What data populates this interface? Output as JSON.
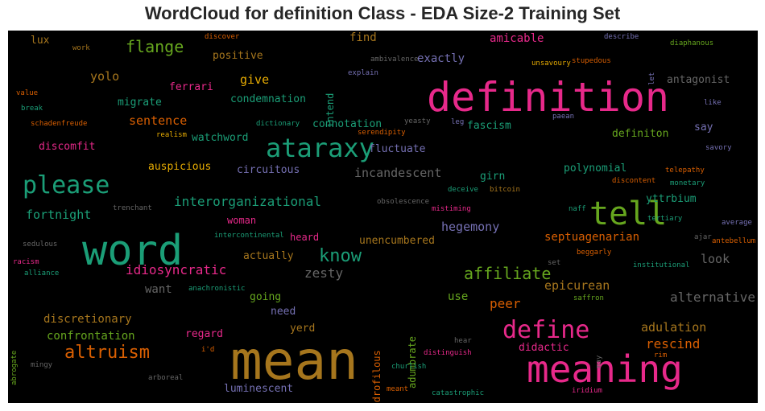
{
  "chart_data": {
    "type": "wordcloud",
    "title": "WordCloud for definition Class - EDA Size-2 Training Set",
    "words": [
      {
        "text": "definition",
        "color": "#e7298a"
      },
      {
        "text": "mean",
        "color": "#a6761d"
      },
      {
        "text": "word",
        "color": "#1b9e77"
      },
      {
        "text": "meaning",
        "color": "#e7298a"
      },
      {
        "text": "tell",
        "color": "#66a61e"
      },
      {
        "text": "ataraxy",
        "color": "#1b9e77"
      },
      {
        "text": "please",
        "color": "#1b9e77"
      },
      {
        "text": "define",
        "color": "#e7298a"
      },
      {
        "text": "altruism",
        "color": "#d95f02"
      },
      {
        "text": "know",
        "color": "#1b9e77"
      },
      {
        "text": "affiliate",
        "color": "#66a61e"
      },
      {
        "text": "flange",
        "color": "#66a61e"
      },
      {
        "text": "interorganizational",
        "color": "#1b9e77"
      },
      {
        "text": "idiosyncratic",
        "color": "#e7298a"
      },
      {
        "text": "alternative",
        "color": "#666666"
      },
      {
        "text": "epicurean",
        "color": "#a6761d"
      },
      {
        "text": "peer",
        "color": "#d95f02"
      },
      {
        "text": "adulation",
        "color": "#a6761d"
      },
      {
        "text": "rescind",
        "color": "#d95f02"
      },
      {
        "text": "zesty",
        "color": "#666666"
      },
      {
        "text": "incandescent",
        "color": "#666666"
      },
      {
        "text": "fortnight",
        "color": "#1b9e77"
      },
      {
        "text": "hegemony",
        "color": "#7570b3"
      },
      {
        "text": "septuagenarian",
        "color": "#d95f02"
      },
      {
        "text": "discretionary",
        "color": "#a6761d"
      },
      {
        "text": "confrontation",
        "color": "#66a61e"
      },
      {
        "text": "sentence",
        "color": "#d95f02"
      },
      {
        "text": "yolo",
        "color": "#a6761d"
      },
      {
        "text": "look",
        "color": "#666666"
      },
      {
        "text": "give",
        "color": "#e6ab02"
      },
      {
        "text": "find",
        "color": "#a6761d"
      },
      {
        "text": "amicable",
        "color": "#e7298a"
      },
      {
        "text": "exactly",
        "color": "#7570b3"
      },
      {
        "text": "positive",
        "color": "#a6761d"
      },
      {
        "text": "antagonist",
        "color": "#666666"
      },
      {
        "text": "fluctuate",
        "color": "#7570b3"
      },
      {
        "text": "connotation",
        "color": "#1b9e77"
      },
      {
        "text": "fascism",
        "color": "#1b9e77"
      },
      {
        "text": "definiton",
        "color": "#66a61e"
      },
      {
        "text": "say",
        "color": "#7570b3"
      },
      {
        "text": "polynomial",
        "color": "#1b9e77"
      },
      {
        "text": "yttrbium",
        "color": "#1b9e77"
      },
      {
        "text": "migrate",
        "color": "#1b9e77"
      },
      {
        "text": "condemnation",
        "color": "#1b9e77"
      },
      {
        "text": "ferrari",
        "color": "#e7298a"
      },
      {
        "text": "watchword",
        "color": "#1b9e77"
      },
      {
        "text": "discomfit",
        "color": "#e7298a"
      },
      {
        "text": "auspicious",
        "color": "#e6ab02"
      },
      {
        "text": "circuitous",
        "color": "#7570b3"
      },
      {
        "text": "girn",
        "color": "#1b9e77"
      },
      {
        "text": "unencumbered",
        "color": "#a6761d"
      },
      {
        "text": "woman",
        "color": "#e7298a"
      },
      {
        "text": "heard",
        "color": "#e7298a"
      },
      {
        "text": "actually",
        "color": "#a6761d"
      },
      {
        "text": "want",
        "color": "#666666"
      },
      {
        "text": "going",
        "color": "#66a61e"
      },
      {
        "text": "need",
        "color": "#7570b3"
      },
      {
        "text": "use",
        "color": "#66a61e"
      },
      {
        "text": "regard",
        "color": "#e7298a"
      },
      {
        "text": "yerd",
        "color": "#a6761d"
      },
      {
        "text": "luminescent",
        "color": "#7570b3"
      },
      {
        "text": "didactic",
        "color": "#e7298a"
      },
      {
        "text": "lux",
        "color": "#a6761d"
      },
      {
        "text": "intend",
        "color": "#1b9e77"
      },
      {
        "text": "dendrofilous",
        "color": "#d95f02"
      },
      {
        "text": "adumbrate",
        "color": "#66a61e"
      },
      {
        "text": "discover",
        "color": "#d95f02"
      },
      {
        "text": "work",
        "color": "#a6761d"
      },
      {
        "text": "value",
        "color": "#d95f02"
      },
      {
        "text": "break",
        "color": "#1b9e77"
      },
      {
        "text": "schadenfreude",
        "color": "#d95f02"
      },
      {
        "text": "realism",
        "color": "#e6ab02"
      },
      {
        "text": "dictionary",
        "color": "#1b9e77"
      },
      {
        "text": "serendipity",
        "color": "#d95f02"
      },
      {
        "text": "yeasty",
        "color": "#666666"
      },
      {
        "text": "leg",
        "color": "#7570b3"
      },
      {
        "text": "paean",
        "color": "#7570b3"
      },
      {
        "text": "ambivalence",
        "color": "#666666"
      },
      {
        "text": "explain",
        "color": "#7570b3"
      },
      {
        "text": "describe",
        "color": "#7570b3"
      },
      {
        "text": "diaphanous",
        "color": "#66a61e"
      },
      {
        "text": "unsavoury",
        "color": "#e6ab02"
      },
      {
        "text": "stupedous",
        "color": "#d95f02"
      },
      {
        "text": "let",
        "color": "#7570b3"
      },
      {
        "text": "like",
        "color": "#7570b3"
      },
      {
        "text": "savory",
        "color": "#7570b3"
      },
      {
        "text": "telepathy",
        "color": "#d95f02"
      },
      {
        "text": "discontent",
        "color": "#d95f02"
      },
      {
        "text": "monetary",
        "color": "#1b9e77"
      },
      {
        "text": "deceive",
        "color": "#1b9e77"
      },
      {
        "text": "bitcoin",
        "color": "#a6761d"
      },
      {
        "text": "obsolescence",
        "color": "#666666"
      },
      {
        "text": "trenchant",
        "color": "#666666"
      },
      {
        "text": "mistiming",
        "color": "#e7298a"
      },
      {
        "text": "naff",
        "color": "#1b9e77"
      },
      {
        "text": "tertiary",
        "color": "#1b9e77"
      },
      {
        "text": "average",
        "color": "#7570b3"
      },
      {
        "text": "ajar",
        "color": "#666666"
      },
      {
        "text": "antebellum",
        "color": "#d95f02"
      },
      {
        "text": "intercontinental",
        "color": "#1b9e77"
      },
      {
        "text": "sedulous",
        "color": "#666666"
      },
      {
        "text": "racism",
        "color": "#e7298a"
      },
      {
        "text": "alliance",
        "color": "#1b9e77"
      },
      {
        "text": "beggarly",
        "color": "#d95f02"
      },
      {
        "text": "institutional",
        "color": "#1b9e77"
      },
      {
        "text": "set",
        "color": "#666666"
      },
      {
        "text": "anachronistic",
        "color": "#1b9e77"
      },
      {
        "text": "saffron",
        "color": "#66a61e"
      },
      {
        "text": "abrogate",
        "color": "#66a61e"
      },
      {
        "text": "hear",
        "color": "#666666"
      },
      {
        "text": "i'd",
        "color": "#d95f02"
      },
      {
        "text": "distinguish",
        "color": "#e7298a"
      },
      {
        "text": "may",
        "color": "#666666"
      },
      {
        "text": "rim",
        "color": "#d95f02"
      },
      {
        "text": "mingy",
        "color": "#666666"
      },
      {
        "text": "arboreal",
        "color": "#666666"
      },
      {
        "text": "churlish",
        "color": "#1b9e77"
      },
      {
        "text": "meant",
        "color": "#d95f02"
      },
      {
        "text": "catastrophic",
        "color": "#1b9e77"
      },
      {
        "text": "iridium",
        "color": "#e7298a"
      }
    ]
  }
}
